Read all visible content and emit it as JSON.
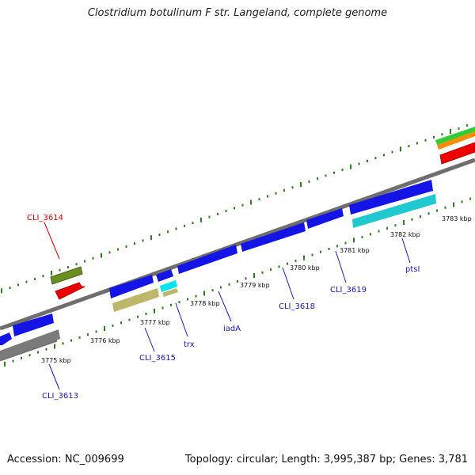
{
  "title": "Clostridium botulinum F str. Langeland, complete genome",
  "footer": {
    "accession": "Accession: NC_009699",
    "summary": "Topology: circular; Length: 3,995,387 bp; Genes: 3,781"
  },
  "colors": {
    "backbone": "#808080",
    "dots": "#2e7d1e",
    "label_blue": "#1a1ab0",
    "label_red": "#cc0000"
  },
  "scale_ticks": [
    "3775 kbp",
    "3776 kbp",
    "3777 kbp",
    "3778 kbp",
    "3779 kbp",
    "3780 kbp",
    "3781 kbp",
    "3782 kbp",
    "3783 kbp"
  ],
  "gene_labels": [
    {
      "text": "CLI_3614",
      "color": "#cc0000"
    },
    {
      "text": "CLI_3613",
      "color": "#1a1ab0"
    },
    {
      "text": "CLI_3615",
      "color": "#1a1ab0"
    },
    {
      "text": "trx",
      "color": "#1a1ab0"
    },
    {
      "text": "iadA",
      "color": "#1a1ab0"
    },
    {
      "text": "CLI_3618",
      "color": "#1a1ab0"
    },
    {
      "text": "CLI_3619",
      "color": "#1a1ab0"
    },
    {
      "text": "ptsI",
      "color": "#1a1ab0"
    }
  ]
}
